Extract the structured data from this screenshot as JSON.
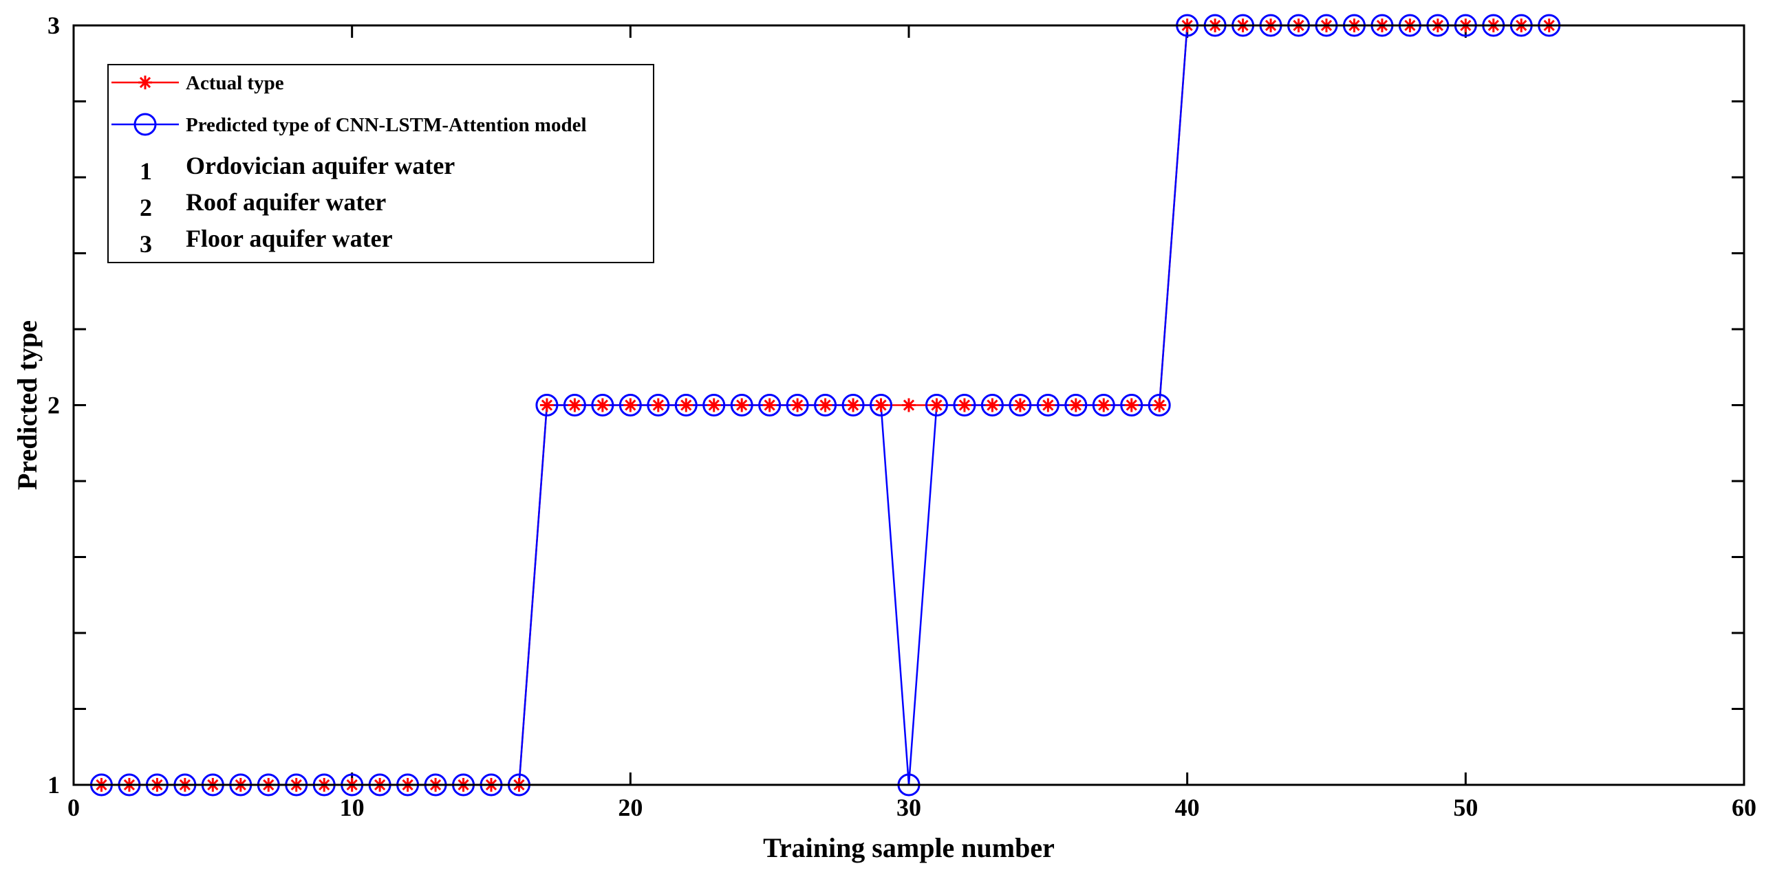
{
  "chart_data": {
    "type": "line",
    "title": "",
    "xlabel": "Training sample number",
    "ylabel": "Predicted type",
    "xlim": [
      0,
      60
    ],
    "ylim": [
      1,
      3
    ],
    "xticks": [
      0,
      10,
      20,
      30,
      40,
      50,
      60
    ],
    "yticks": [
      1,
      2,
      3
    ],
    "yminor_ticks": [
      1.2,
      1.4,
      1.6,
      1.8,
      2.2,
      2.4,
      2.6,
      2.8
    ],
    "grid": false,
    "legend_position": "top-left",
    "x": [
      1,
      2,
      3,
      4,
      5,
      6,
      7,
      8,
      9,
      10,
      11,
      12,
      13,
      14,
      15,
      16,
      17,
      18,
      19,
      20,
      21,
      22,
      23,
      24,
      25,
      26,
      27,
      28,
      29,
      30,
      31,
      32,
      33,
      34,
      35,
      36,
      37,
      38,
      39,
      40,
      41,
      42,
      43,
      44,
      45,
      46,
      47,
      48,
      49,
      50,
      51,
      52,
      53
    ],
    "series": [
      {
        "name": "Actual type",
        "color": "#ff0000",
        "marker": "asterisk",
        "values": [
          1,
          1,
          1,
          1,
          1,
          1,
          1,
          1,
          1,
          1,
          1,
          1,
          1,
          1,
          1,
          1,
          2,
          2,
          2,
          2,
          2,
          2,
          2,
          2,
          2,
          2,
          2,
          2,
          2,
          2,
          2,
          2,
          2,
          2,
          2,
          2,
          2,
          2,
          2,
          3,
          3,
          3,
          3,
          3,
          3,
          3,
          3,
          3,
          3,
          3,
          3,
          3,
          3
        ]
      },
      {
        "name": "Predicted type of CNN-LSTM-Attention model",
        "color": "#0000ff",
        "marker": "circle",
        "values": [
          1,
          1,
          1,
          1,
          1,
          1,
          1,
          1,
          1,
          1,
          1,
          1,
          1,
          1,
          1,
          1,
          2,
          2,
          2,
          2,
          2,
          2,
          2,
          2,
          2,
          2,
          2,
          2,
          2,
          1,
          2,
          2,
          2,
          2,
          2,
          2,
          2,
          2,
          2,
          3,
          3,
          3,
          3,
          3,
          3,
          3,
          3,
          3,
          3,
          3,
          3,
          3,
          3
        ]
      }
    ],
    "legend_notes": [
      {
        "number": "1",
        "text": "Ordovician aquifer water"
      },
      {
        "number": "2",
        "text": "Roof aquifer water"
      },
      {
        "number": "3",
        "text": "Floor aquifer water"
      }
    ]
  }
}
